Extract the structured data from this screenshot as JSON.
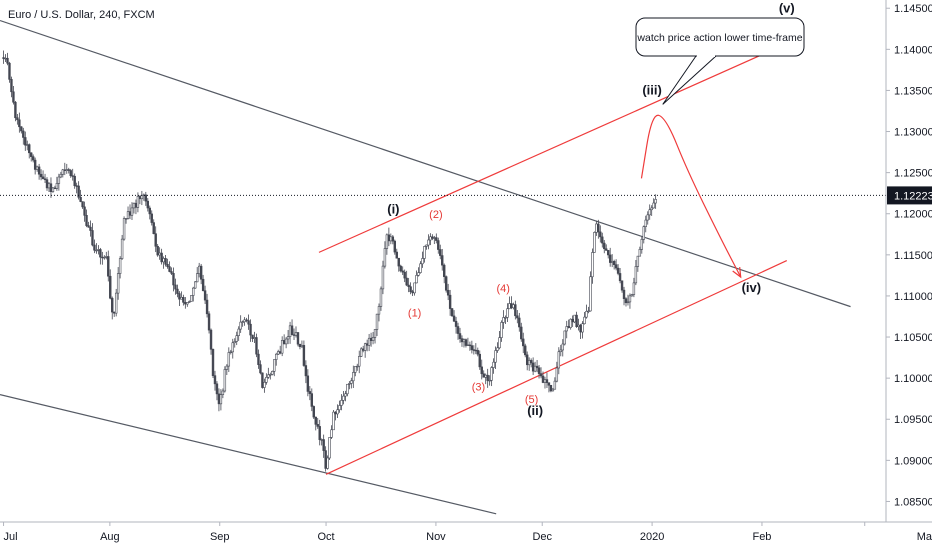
{
  "title": "Euro / U.S. Dollar, 240, FXCM",
  "colors": {
    "candle": "#434651",
    "channel_black": "#555a64",
    "channel_red": "#ef3b3b",
    "current_price_bg": "#131722",
    "current_price_text": "#ffffff"
  },
  "chart_data": {
    "type": "candlestick",
    "title": "Euro / U.S. Dollar, 240, FXCM",
    "symbol": "EURUSD",
    "timeframe": "240",
    "source": "FXCM",
    "x_ticks": [
      "Jul",
      "Aug",
      "Sep",
      "Oct",
      "Nov",
      "Dec",
      "2020",
      "Feb",
      "Ma"
    ],
    "x_tick_positions": [
      0,
      30,
      61,
      91,
      122,
      152,
      183,
      214,
      243
    ],
    "y_ticks": [
      "1.14500",
      "1.14000",
      "1.13500",
      "1.13000",
      "1.12500",
      "1.12000",
      "1.11500",
      "1.11000",
      "1.10500",
      "1.10000",
      "1.09500",
      "1.09000",
      "1.08500"
    ],
    "ylim": [
      1.0825,
      1.146
    ],
    "xlim": [
      -1,
      249
    ],
    "current_price": "1.12223",
    "price_path": [
      [
        0,
        1.139
      ],
      [
        1,
        1.1385
      ],
      [
        3,
        1.1325
      ],
      [
        6,
        1.1285
      ],
      [
        10,
        1.125
      ],
      [
        14,
        1.1225
      ],
      [
        17,
        1.126
      ],
      [
        20,
        1.124
      ],
      [
        23,
        1.1195
      ],
      [
        26,
        1.1155
      ],
      [
        29,
        1.1145
      ],
      [
        31,
        1.1065
      ],
      [
        34,
        1.1195
      ],
      [
        37,
        1.121
      ],
      [
        39,
        1.1225
      ],
      [
        41,
        1.1205
      ],
      [
        43,
        1.1155
      ],
      [
        46,
        1.114
      ],
      [
        49,
        1.1105
      ],
      [
        52,
        1.109
      ],
      [
        55,
        1.1135
      ],
      [
        57,
        1.1095
      ],
      [
        59,
        1.101
      ],
      [
        61,
        1.0965
      ],
      [
        63,
        1.102
      ],
      [
        66,
        1.106
      ],
      [
        68,
        1.1075
      ],
      [
        71,
        1.1045
      ],
      [
        73,
        1.0985
      ],
      [
        76,
        1.1015
      ],
      [
        78,
        1.1035
      ],
      [
        81,
        1.106
      ],
      [
        84,
        1.104
      ],
      [
        86,
        1.0985
      ],
      [
        88,
        1.0945
      ],
      [
        90,
        1.092
      ],
      [
        91,
        1.089
      ],
      [
        93,
        1.0955
      ],
      [
        96,
        1.098
      ],
      [
        99,
        1.1005
      ],
      [
        101,
        1.1035
      ],
      [
        104,
        1.105
      ],
      [
        106,
        1.1085
      ],
      [
        108,
        1.1175
      ],
      [
        110,
        1.1165
      ],
      [
        112,
        1.1135
      ],
      [
        115,
        1.1105
      ],
      [
        117,
        1.1125
      ],
      [
        119,
        1.1165
      ],
      [
        121,
        1.117
      ],
      [
        123,
        1.116
      ],
      [
        126,
        1.1085
      ],
      [
        128,
        1.1055
      ],
      [
        130,
        1.1045
      ],
      [
        133,
        1.1035
      ],
      [
        135,
        1.101
      ],
      [
        137,
        1.0995
      ],
      [
        139,
        1.1035
      ],
      [
        141,
        1.1075
      ],
      [
        143,
        1.109
      ],
      [
        145,
        1.1075
      ],
      [
        147,
        1.1025
      ],
      [
        149,
        1.1015
      ],
      [
        151,
        1.1005
      ],
      [
        153,
        1.0995
      ],
      [
        155,
        1.0985
      ],
      [
        157,
        1.1035
      ],
      [
        159,
        1.1065
      ],
      [
        161,
        1.1075
      ],
      [
        163,
        1.1055
      ],
      [
        165,
        1.1085
      ],
      [
        167,
        1.1195
      ],
      [
        169,
        1.1165
      ],
      [
        171,
        1.1145
      ],
      [
        173,
        1.113
      ],
      [
        175,
        1.1095
      ],
      [
        177,
        1.11
      ],
      [
        178,
        1.1125
      ],
      [
        180,
        1.117
      ],
      [
        181,
        1.1195
      ],
      [
        183,
        1.121
      ],
      [
        184,
        1.1222
      ]
    ],
    "wave_labels_minor": [
      {
        "text": "(1)",
        "x": 116,
        "price": 1.1075
      },
      {
        "text": "(2)",
        "x": 122,
        "price": 1.1195
      },
      {
        "text": "(3)",
        "x": 134,
        "price": 1.0985
      },
      {
        "text": "(4)",
        "x": 141,
        "price": 1.1105
      },
      {
        "text": "(5)",
        "x": 149,
        "price": 1.097
      }
    ],
    "wave_labels_major": [
      {
        "text": "(i)",
        "x": 110,
        "price": 1.12
      },
      {
        "text": "(ii)",
        "x": 150,
        "price": 1.0955
      },
      {
        "text": "(iii)",
        "x": 183,
        "price": 1.1345
      },
      {
        "text": "(iv)",
        "x": 211,
        "price": 1.1105
      },
      {
        "text": "(v)",
        "x": 221,
        "price": 1.1445
      }
    ],
    "trendlines_black": [
      {
        "name": "upper-downtrend",
        "points": [
          [
            -1,
            1.1435
          ],
          [
            239,
            1.1087
          ]
        ]
      },
      {
        "name": "lower-downtrend",
        "points": [
          [
            -1,
            1.098
          ],
          [
            139,
            1.0835
          ]
        ]
      }
    ],
    "trendlines_red": [
      {
        "name": "channel-upper",
        "points": [
          [
            89,
            1.1153
          ],
          [
            221,
            1.1407
          ]
        ]
      },
      {
        "name": "channel-lower",
        "points": [
          [
            91,
            1.0883
          ],
          [
            221,
            1.1143
          ]
        ]
      }
    ],
    "projection_path": [
      [
        180,
        1.1243
      ],
      [
        183,
        1.1323
      ],
      [
        187,
        1.1316
      ],
      [
        193,
        1.1252
      ],
      [
        202,
        1.1173
      ],
      [
        208,
        1.1123
      ]
    ],
    "annotation": {
      "text": "watch price action lower time-frame",
      "anchor": [
        186,
        1.1333
      ]
    }
  }
}
